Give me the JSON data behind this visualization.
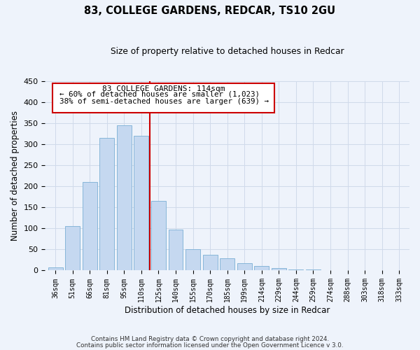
{
  "title": "83, COLLEGE GARDENS, REDCAR, TS10 2GU",
  "subtitle": "Size of property relative to detached houses in Redcar",
  "xlabel": "Distribution of detached houses by size in Redcar",
  "ylabel": "Number of detached properties",
  "bar_color": "#c5d8f0",
  "bar_edge_color": "#7aafd4",
  "categories": [
    "36sqm",
    "51sqm",
    "66sqm",
    "81sqm",
    "95sqm",
    "110sqm",
    "125sqm",
    "140sqm",
    "155sqm",
    "170sqm",
    "185sqm",
    "199sqm",
    "214sqm",
    "229sqm",
    "244sqm",
    "259sqm",
    "274sqm",
    "288sqm",
    "303sqm",
    "318sqm",
    "333sqm"
  ],
  "values": [
    7,
    105,
    210,
    315,
    345,
    320,
    165,
    97,
    50,
    37,
    29,
    18,
    10,
    5,
    3,
    2,
    1,
    0,
    0,
    0,
    0
  ],
  "annotation_title": "83 COLLEGE GARDENS: 114sqm",
  "annotation_line1": "← 60% of detached houses are smaller (1,023)",
  "annotation_line2": "38% of semi-detached houses are larger (639) →",
  "ylim": [
    0,
    450
  ],
  "yticks": [
    0,
    50,
    100,
    150,
    200,
    250,
    300,
    350,
    400,
    450
  ],
  "footer1": "Contains HM Land Registry data © Crown copyright and database right 2024.",
  "footer2": "Contains public sector information licensed under the Open Government Licence v 3.0.",
  "annotation_box_facecolor": "#ffffff",
  "annotation_box_edgecolor": "#cc0000",
  "redline_color": "#cc0000",
  "grid_color": "#d0daea",
  "bg_color": "#eef3fb",
  "redline_index": 5.5
}
